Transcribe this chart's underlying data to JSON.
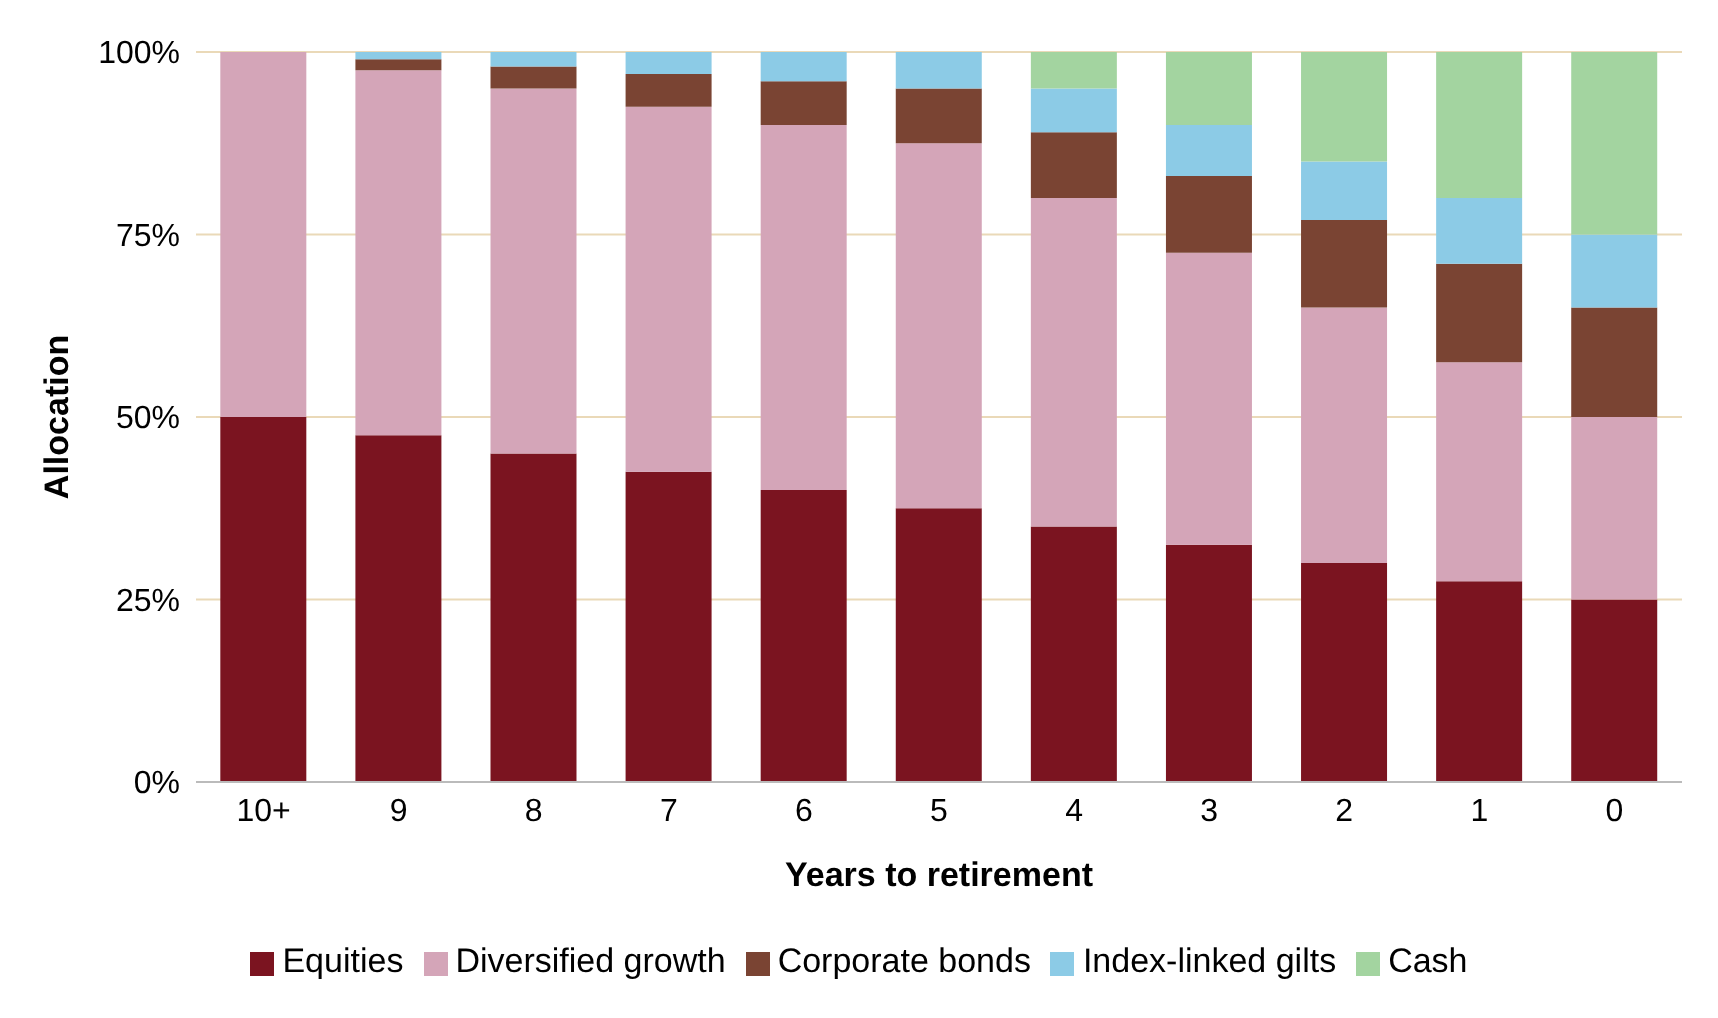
{
  "chart_data": {
    "type": "bar",
    "stacked": true,
    "xlabel": "Years to retirement",
    "ylabel": "Allocation",
    "categories": [
      "10+",
      "9",
      "8",
      "7",
      "6",
      "5",
      "4",
      "3",
      "2",
      "1",
      "0"
    ],
    "series": [
      {
        "name": "Equities",
        "color": "#7b1420",
        "values": [
          50,
          47.5,
          45,
          42.5,
          40,
          37.5,
          35,
          32.5,
          30,
          27.5,
          25
        ]
      },
      {
        "name": "Diversified growth",
        "color": "#d4a5b8",
        "values": [
          50,
          50,
          50,
          50,
          50,
          50,
          45,
          40,
          35,
          30,
          25
        ]
      },
      {
        "name": "Corporate bonds",
        "color": "#7a4433",
        "values": [
          0,
          1.5,
          3,
          4.5,
          6,
          7.5,
          9,
          10.5,
          12,
          13.5,
          15
        ]
      },
      {
        "name": "Index-linked gilts",
        "color": "#8ccbe6",
        "values": [
          0,
          1,
          2,
          3,
          4,
          5,
          6,
          7,
          8,
          9,
          10
        ]
      },
      {
        "name": "Cash",
        "color": "#a3d4a0",
        "values": [
          0,
          0,
          0,
          0,
          0,
          0,
          5,
          10,
          15,
          20,
          25
        ]
      }
    ],
    "ylim": [
      0,
      100
    ],
    "yticks": [
      {
        "value": 0,
        "label": "0%"
      },
      {
        "value": 25,
        "label": "25%"
      },
      {
        "value": 50,
        "label": "50%"
      },
      {
        "value": 75,
        "label": "75%"
      },
      {
        "value": 100,
        "label": "100%"
      }
    ],
    "grid": "y",
    "legend": "bottom"
  }
}
